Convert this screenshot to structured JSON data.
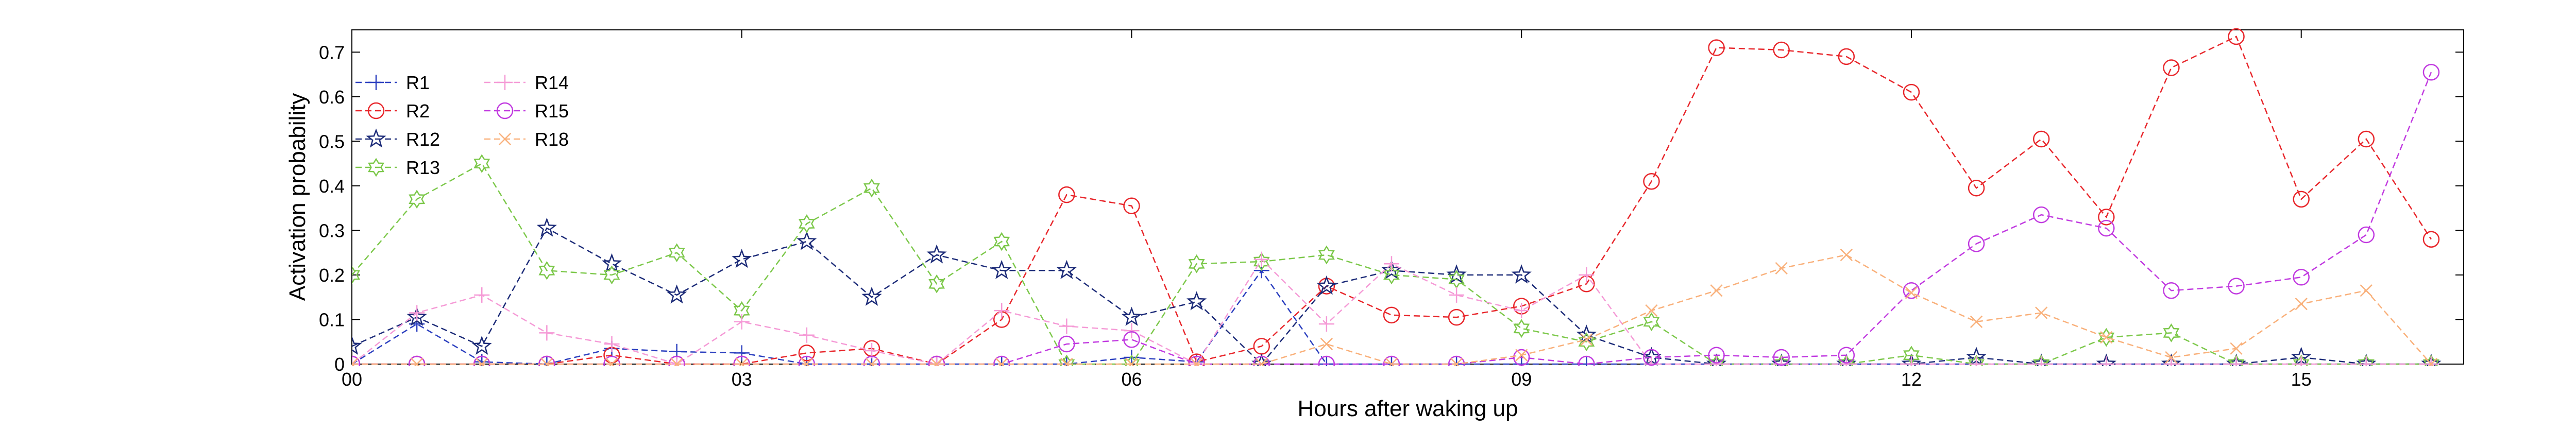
{
  "chart_data": {
    "type": "line",
    "xlabel": "Hours after waking up",
    "ylabel": "Activation probability",
    "xlim": [
      0,
      16.25
    ],
    "ylim": [
      0,
      0.75
    ],
    "x_ticks": [
      {
        "value": 0,
        "label": "00"
      },
      {
        "value": 3,
        "label": "03"
      },
      {
        "value": 6,
        "label": "06"
      },
      {
        "value": 9,
        "label": "09"
      },
      {
        "value": 12,
        "label": "12"
      },
      {
        "value": 15,
        "label": "15"
      }
    ],
    "y_ticks": [
      {
        "value": 0,
        "label": "0"
      },
      {
        "value": 0.1,
        "label": "0.1"
      },
      {
        "value": 0.2,
        "label": "0.2"
      },
      {
        "value": 0.3,
        "label": "0.3"
      },
      {
        "value": 0.4,
        "label": "0.4"
      },
      {
        "value": 0.5,
        "label": "0.5"
      },
      {
        "value": 0.6,
        "label": "0.6"
      },
      {
        "value": 0.7,
        "label": "0.7"
      }
    ],
    "grid": false,
    "legend_position": "top-left",
    "x": [
      0,
      0.5,
      1,
      1.5,
      2,
      2.5,
      3,
      3.5,
      4,
      4.5,
      5,
      5.5,
      6,
      6.5,
      7,
      7.5,
      8,
      8.5,
      9,
      9.5,
      10,
      10.5,
      11,
      11.5,
      12,
      12.5,
      13,
      13.5,
      14,
      14.5,
      15,
      15.5,
      16
    ],
    "series": [
      {
        "name": "R1",
        "color": "#2b3fbf",
        "marker": "plus",
        "values": [
          0.0,
          0.09,
          0.005,
          0.0,
          0.035,
          0.028,
          0.025,
          0.0,
          0.0,
          0.0,
          0.0,
          0.0,
          0.015,
          0.005,
          0.21,
          0.0,
          0.0,
          0.0,
          0.0,
          0.0,
          0.0,
          0.0,
          0.0,
          0.0,
          0.0,
          0.0,
          0.0,
          0.0,
          0.0,
          0.0,
          0.0,
          0.0,
          0.0
        ]
      },
      {
        "name": "R2",
        "color": "#e8262b",
        "marker": "circle",
        "values": [
          0.0,
          0.0,
          0.0,
          0.0,
          0.02,
          0.0,
          0.0,
          0.025,
          0.035,
          0.0,
          0.1,
          0.38,
          0.355,
          0.005,
          0.04,
          0.175,
          0.11,
          0.105,
          0.13,
          0.18,
          0.41,
          0.71,
          0.705,
          0.69,
          0.61,
          0.395,
          0.505,
          0.33,
          0.665,
          0.735,
          0.37,
          0.505,
          0.28
        ]
      },
      {
        "name": "R12",
        "color": "#1c2b78",
        "marker": "star",
        "values": [
          0.04,
          0.105,
          0.04,
          0.305,
          0.225,
          0.155,
          0.235,
          0.275,
          0.15,
          0.245,
          0.21,
          0.21,
          0.105,
          0.14,
          0.0,
          0.175,
          0.21,
          0.2,
          0.2,
          0.065,
          0.015,
          0.0,
          0.0,
          0.0,
          0.0,
          0.015,
          0.0,
          0.0,
          0.0,
          0.0,
          0.015,
          0.0,
          0.0
        ]
      },
      {
        "name": "R13",
        "color": "#7cc84a",
        "marker": "hexagram",
        "values": [
          0.2,
          0.37,
          0.45,
          0.21,
          0.2,
          0.25,
          0.12,
          0.315,
          0.395,
          0.18,
          0.275,
          0.0,
          0.0,
          0.225,
          0.23,
          0.245,
          0.2,
          0.19,
          0.08,
          0.05,
          0.095,
          0.0,
          0.0,
          0.0,
          0.02,
          0.0,
          0.0,
          0.06,
          0.07,
          0.0,
          0.0,
          0.0,
          0.0
        ]
      },
      {
        "name": "R14",
        "color": "#f59ad6",
        "marker": "plus",
        "values": [
          0.0,
          0.115,
          0.155,
          0.07,
          0.045,
          0.0,
          0.095,
          0.065,
          0.03,
          0.0,
          0.12,
          0.085,
          0.075,
          0.0,
          0.235,
          0.09,
          0.225,
          0.155,
          0.12,
          0.2,
          0.0,
          0.0,
          0.0,
          0.0,
          0.0,
          0.0,
          0.0,
          0.0,
          0.0,
          0.0,
          0.0,
          0.0,
          0.0
        ]
      },
      {
        "name": "R15",
        "color": "#c13ae0",
        "marker": "circle",
        "values": [
          0.0,
          0.0,
          0.0,
          0.0,
          0.0,
          0.0,
          0.0,
          0.0,
          0.0,
          0.0,
          0.0,
          0.045,
          0.055,
          0.0,
          0.0,
          0.0,
          0.0,
          0.0,
          0.015,
          0.0,
          0.015,
          0.02,
          0.015,
          0.02,
          0.165,
          0.27,
          0.335,
          0.305,
          0.165,
          0.175,
          0.195,
          0.29,
          0.655
        ]
      },
      {
        "name": "R18",
        "color": "#f9b07a",
        "marker": "x",
        "values": [
          0.0,
          0.0,
          0.0,
          0.0,
          0.0,
          0.0,
          0.0,
          0.0,
          0.0,
          0.0,
          0.0,
          0.0,
          0.0,
          0.0,
          0.0,
          0.045,
          0.0,
          0.0,
          0.02,
          0.055,
          0.12,
          0.165,
          0.215,
          0.245,
          0.16,
          0.095,
          0.115,
          0.06,
          0.015,
          0.035,
          0.135,
          0.165,
          0.0
        ]
      }
    ]
  }
}
